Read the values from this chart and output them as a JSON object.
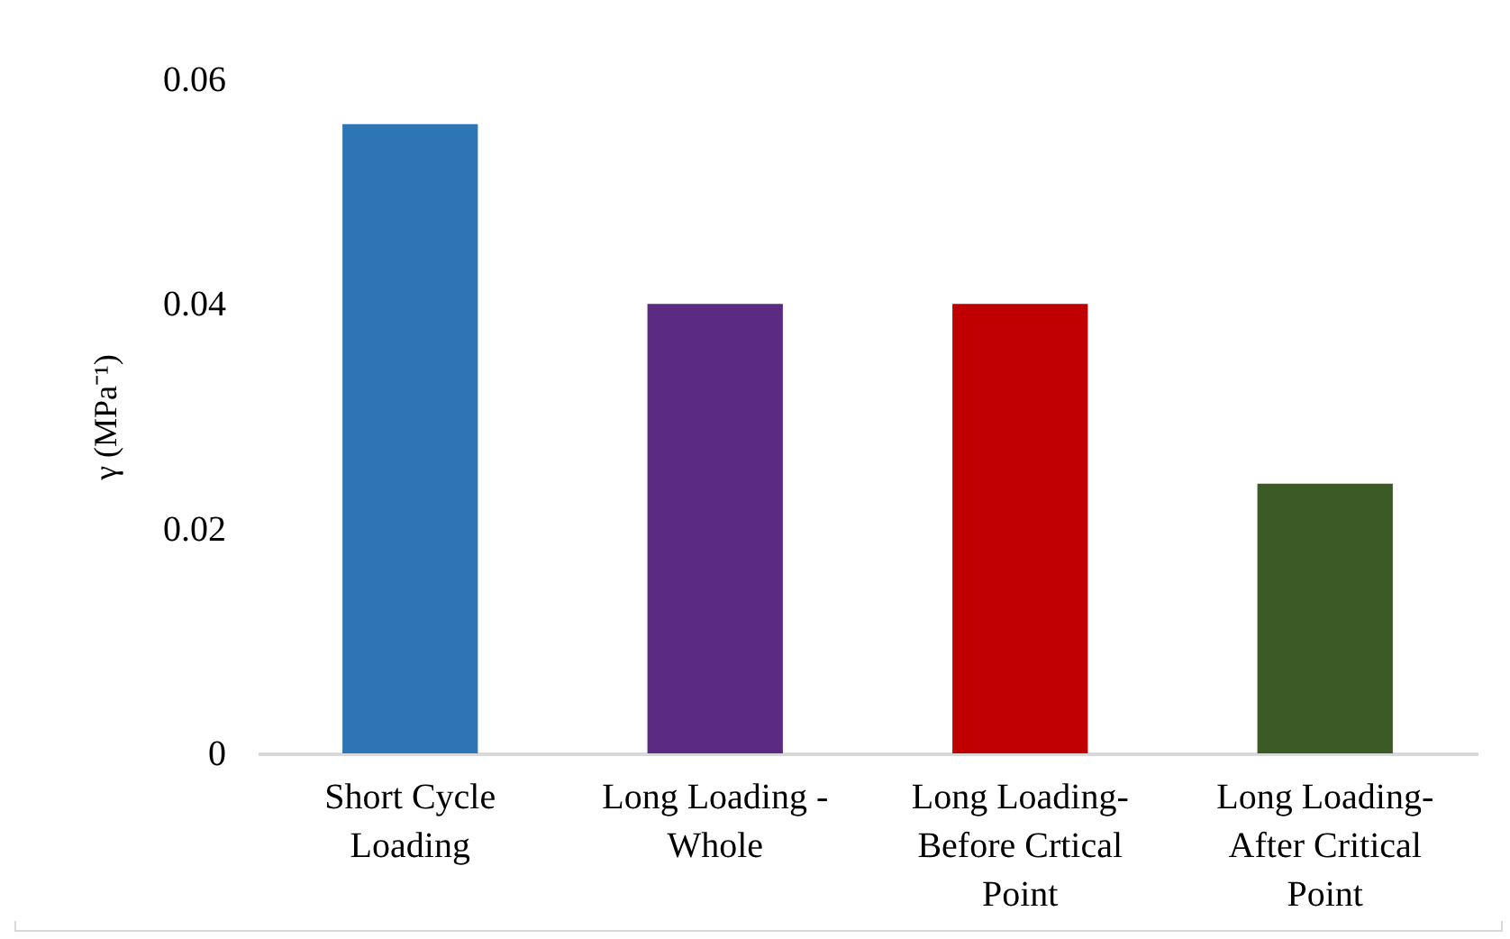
{
  "chart_data": {
    "type": "bar",
    "ylabel": "γ (MPa⁻¹)",
    "categories": [
      "Short Cycle Loading",
      "Long Loading - Whole",
      "Long Loading- Before Crtical Point",
      "Long Loading- After Critical Point"
    ],
    "values": [
      0.056,
      0.04,
      0.04,
      0.024
    ],
    "colors": [
      "#2e75b6",
      "#5b2a82",
      "#c00000",
      "#3b5a25"
    ],
    "ylim": [
      0,
      0.06
    ],
    "yticks": [
      0,
      0.02,
      0.04,
      0.06
    ],
    "grid": false,
    "legend": false
  }
}
